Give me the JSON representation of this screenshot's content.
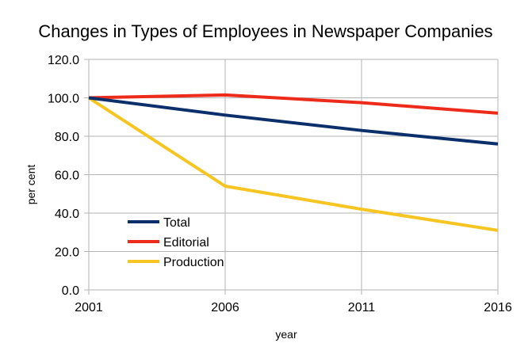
{
  "chart_data": {
    "type": "line",
    "title": "Changes in Types of Employees in Newspaper Companies",
    "xlabel": "year",
    "ylabel": "per cent",
    "x": [
      2001,
      2006,
      2011,
      2016
    ],
    "x_tick_labels": [
      "2001",
      "2006",
      "2011",
      "2016"
    ],
    "y_tick_labels": [
      "0.0",
      "20.0",
      "40.0",
      "60.0",
      "80.0",
      "100.0",
      "120.0"
    ],
    "ylim": [
      0,
      120
    ],
    "grid": true,
    "legend_position": "bottom-left",
    "series": [
      {
        "name": "Total",
        "color": "#0a2f6b",
        "values": [
          100,
          91,
          83,
          76
        ]
      },
      {
        "name": "Editorial",
        "color": "#ee2a1b",
        "values": [
          100,
          101.5,
          97.5,
          92
        ]
      },
      {
        "name": "Production",
        "color": "#f6c521",
        "values": [
          100,
          54,
          42,
          31
        ]
      }
    ]
  }
}
